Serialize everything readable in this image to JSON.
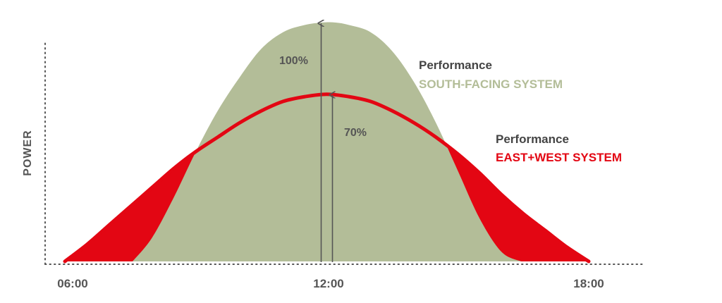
{
  "chart_data": {
    "type": "area",
    "ylabel": "POWER",
    "x_ticks": [
      "06:00",
      "12:00",
      "18:00"
    ],
    "xlim_hours": [
      6,
      18
    ],
    "grid": false,
    "series": [
      {
        "legend_title": "Performance",
        "name": "SOUTH-FACING SYSTEM",
        "color": "#b3bd98",
        "peak_percent": 100,
        "peak_label": "100%",
        "x_hours": [
          7.55,
          8.0,
          8.5,
          9.0,
          9.5,
          10.0,
          10.5,
          11.0,
          11.5,
          11.9,
          12.2,
          12.5,
          13.0,
          13.5,
          14.0,
          14.5,
          15.0,
          15.5,
          16.0,
          16.45
        ],
        "y_percent": [
          0,
          10,
          27,
          46,
          63,
          77,
          89,
          96,
          99,
          100,
          100,
          99,
          96,
          88,
          75,
          58,
          38,
          18,
          4,
          0
        ]
      },
      {
        "legend_title": "Performance",
        "name": "EAST+WEST SYSTEM",
        "color": "#e30613",
        "peak_percent": 70,
        "peak_label": "70%",
        "x_hours": [
          6.0,
          6.5,
          7.0,
          7.5,
          8.0,
          8.5,
          9.0,
          9.5,
          10.0,
          10.5,
          11.0,
          11.5,
          12.0,
          12.5,
          13.0,
          13.5,
          14.0,
          14.5,
          15.0,
          15.5,
          16.0,
          16.5,
          17.0,
          17.5,
          18.0
        ],
        "y_percent": [
          0,
          7,
          15,
          23,
          31,
          39,
          46,
          52,
          58,
          63,
          67,
          69,
          70,
          69,
          67,
          63,
          58,
          52,
          45,
          37,
          28,
          20,
          13,
          6,
          0
        ]
      }
    ],
    "annotations": [
      "100%",
      "70%"
    ]
  }
}
